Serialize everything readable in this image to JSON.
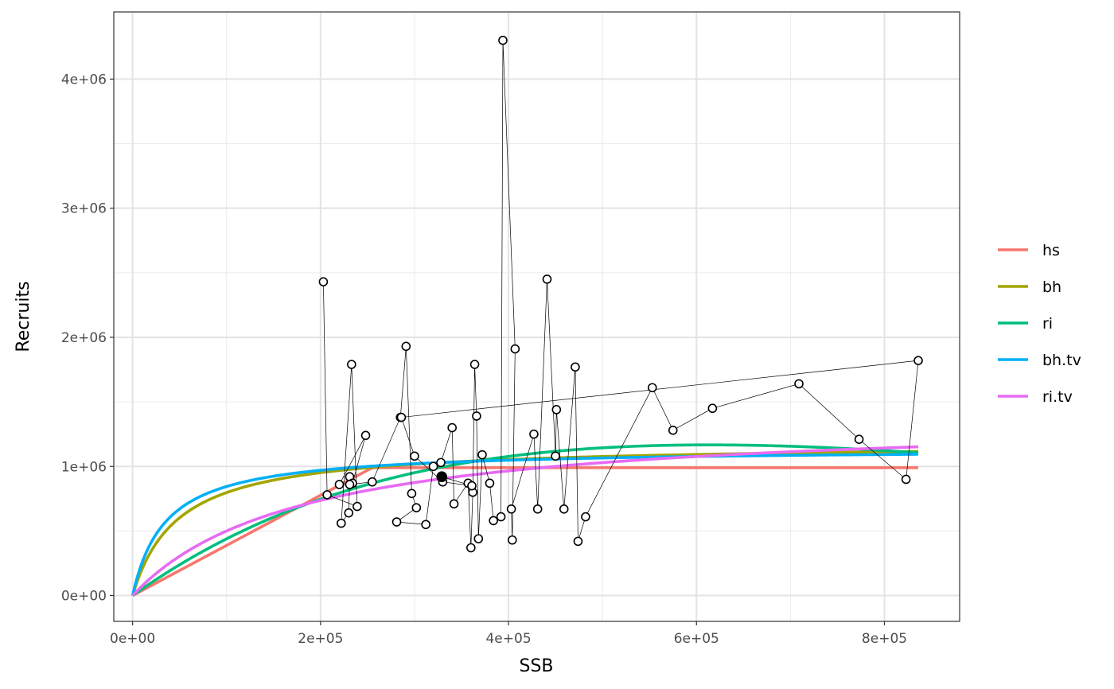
{
  "chart_data": {
    "type": "scatter",
    "xlabel": "SSB",
    "ylabel": "Recruits",
    "xlim": [
      -20000,
      880000
    ],
    "ylim": [
      -200000,
      4520000
    ],
    "x_ticks": [
      0,
      200000,
      400000,
      600000,
      800000
    ],
    "x_tick_labels": [
      "0e+00",
      "2e+05",
      "4e+05",
      "6e+05",
      "8e+05"
    ],
    "y_ticks": [
      0,
      1000000,
      2000000,
      3000000,
      4000000
    ],
    "y_tick_labels": [
      "0e+00",
      "1e+06",
      "2e+06",
      "3e+06",
      "4e+06"
    ],
    "grid": true,
    "legend_position": "right",
    "observations": {
      "x": [
        203000,
        207000,
        239000,
        233000,
        222000,
        230000,
        231000,
        234000,
        248000,
        220000,
        231000,
        255000,
        285000,
        291000,
        297000,
        302000,
        281000,
        312000,
        320000,
        328000,
        340000,
        342000,
        357000,
        360000,
        362000,
        364000,
        366000,
        368000,
        372000,
        380000,
        384000,
        392000,
        394000,
        407000,
        404000,
        403000,
        427000,
        431000,
        441000,
        450000,
        451000,
        459000,
        471000,
        474000,
        482000,
        553000,
        575000,
        617000,
        709000,
        773000,
        823000,
        836000,
        286000,
        300000,
        330000,
        361000,
        329000
      ],
      "y": [
        2430000,
        780000,
        690000,
        1790000,
        560000,
        640000,
        920000,
        870000,
        1240000,
        860000,
        860000,
        880000,
        1380000,
        1930000,
        790000,
        680000,
        570000,
        550000,
        1000000,
        1030000,
        1300000,
        710000,
        870000,
        370000,
        800000,
        1790000,
        1390000,
        440000,
        1090000,
        870000,
        580000,
        610000,
        4300000,
        1910000,
        430000,
        670000,
        1250000,
        670000,
        2450000,
        1080000,
        1440000,
        670000,
        1770000,
        420000,
        610000,
        1610000,
        1280000,
        1450000,
        1640000,
        1210000,
        900000,
        1820000,
        1380000,
        1080000,
        880000,
        850000,
        920000
      ],
      "last_point_filled": true
    },
    "series": [
      {
        "name": "hs",
        "color": "#F8766D",
        "model": "hockey_stick",
        "params": {
          "breakpoint": 255000,
          "rmax": 990000
        }
      },
      {
        "name": "bh",
        "color": "#A3A500",
        "model": "beverton_holt",
        "params": {
          "a": 1180000,
          "b": 48000
        }
      },
      {
        "name": "ri",
        "color": "#00BF7D",
        "model": "ricker",
        "params": {
          "a": 5.17,
          "b": 1.63e-06
        }
      },
      {
        "name": "bh.tv",
        "color": "#00B0F6",
        "model": "beverton_holt",
        "params": {
          "a": 1140000,
          "b": 35000
        }
      },
      {
        "name": "ri.tv",
        "color": "#E76BF3",
        "model": "beverton_holt",
        "params": {
          "a": 1400000,
          "b": 180000
        }
      }
    ],
    "x_max_curve": 836000
  }
}
